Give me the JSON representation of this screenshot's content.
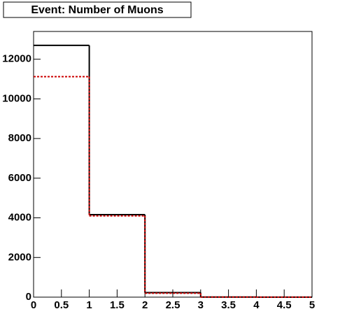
{
  "chart_data": {
    "type": "histogram",
    "title": "Event: Number of Muons",
    "bins": [
      0,
      1,
      2,
      3,
      4,
      5
    ],
    "series": [
      {
        "color": "#000000",
        "dashed": false,
        "values": [
          12700,
          4160,
          230,
          5,
          0
        ]
      },
      {
        "color": "#cc0000",
        "dashed": true,
        "values": [
          11120,
          4100,
          200,
          3,
          0
        ]
      }
    ],
    "xlim": [
      0,
      5
    ],
    "xticks": [
      0,
      0.5,
      1,
      1.5,
      2,
      2.5,
      3,
      3.5,
      4,
      4.5,
      5
    ],
    "ylim": [
      0,
      13400
    ],
    "yticks": [
      0,
      2000,
      4000,
      6000,
      8000,
      10000,
      12000
    ]
  }
}
